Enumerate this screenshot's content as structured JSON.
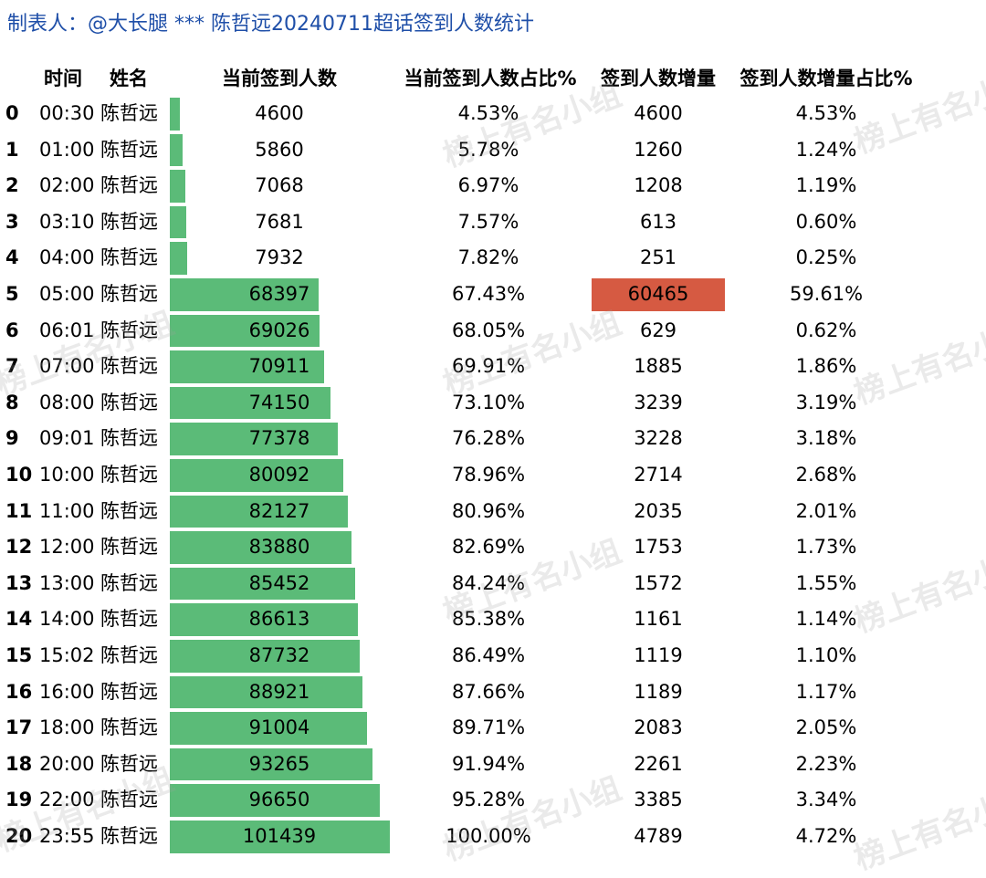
{
  "title": "制表人：@大长腿 *** 陈哲远20240711超话签到人数统计",
  "headers": {
    "time": "时间",
    "name": "姓名",
    "count": "当前签到人数",
    "count_pct": "当前签到人数占比%",
    "increase": "签到人数增量",
    "increase_pct": "签到人数增量占比%"
  },
  "max_count": 101439,
  "highlight_color": "#d65a42",
  "bar_color": "#5bbb78",
  "watermark_text": "榜上有名小组",
  "rows": [
    {
      "idx": "0",
      "time": "00:30",
      "name": "陈哲远",
      "count": "4600",
      "count_pct": "4.53%",
      "increase": "4600",
      "increase_pct": "4.53%"
    },
    {
      "idx": "1",
      "time": "01:00",
      "name": "陈哲远",
      "count": "5860",
      "count_pct": "5.78%",
      "increase": "1260",
      "increase_pct": "1.24%"
    },
    {
      "idx": "2",
      "time": "02:00",
      "name": "陈哲远",
      "count": "7068",
      "count_pct": "6.97%",
      "increase": "1208",
      "increase_pct": "1.19%"
    },
    {
      "idx": "3",
      "time": "03:10",
      "name": "陈哲远",
      "count": "7681",
      "count_pct": "7.57%",
      "increase": "613",
      "increase_pct": "0.60%"
    },
    {
      "idx": "4",
      "time": "04:00",
      "name": "陈哲远",
      "count": "7932",
      "count_pct": "7.82%",
      "increase": "251",
      "increase_pct": "0.25%"
    },
    {
      "idx": "5",
      "time": "05:00",
      "name": "陈哲远",
      "count": "68397",
      "count_pct": "67.43%",
      "increase": "60465",
      "increase_pct": "59.61%",
      "highlight": true
    },
    {
      "idx": "6",
      "time": "06:01",
      "name": "陈哲远",
      "count": "69026",
      "count_pct": "68.05%",
      "increase": "629",
      "increase_pct": "0.62%"
    },
    {
      "idx": "7",
      "time": "07:00",
      "name": "陈哲远",
      "count": "70911",
      "count_pct": "69.91%",
      "increase": "1885",
      "increase_pct": "1.86%"
    },
    {
      "idx": "8",
      "time": "08:00",
      "name": "陈哲远",
      "count": "74150",
      "count_pct": "73.10%",
      "increase": "3239",
      "increase_pct": "3.19%"
    },
    {
      "idx": "9",
      "time": "09:01",
      "name": "陈哲远",
      "count": "77378",
      "count_pct": "76.28%",
      "increase": "3228",
      "increase_pct": "3.18%"
    },
    {
      "idx": "10",
      "time": "10:00",
      "name": "陈哲远",
      "count": "80092",
      "count_pct": "78.96%",
      "increase": "2714",
      "increase_pct": "2.68%"
    },
    {
      "idx": "11",
      "time": "11:00",
      "name": "陈哲远",
      "count": "82127",
      "count_pct": "80.96%",
      "increase": "2035",
      "increase_pct": "2.01%"
    },
    {
      "idx": "12",
      "time": "12:00",
      "name": "陈哲远",
      "count": "83880",
      "count_pct": "82.69%",
      "increase": "1753",
      "increase_pct": "1.73%"
    },
    {
      "idx": "13",
      "time": "13:00",
      "name": "陈哲远",
      "count": "85452",
      "count_pct": "84.24%",
      "increase": "1572",
      "increase_pct": "1.55%"
    },
    {
      "idx": "14",
      "time": "14:00",
      "name": "陈哲远",
      "count": "86613",
      "count_pct": "85.38%",
      "increase": "1161",
      "increase_pct": "1.14%"
    },
    {
      "idx": "15",
      "time": "15:02",
      "name": "陈哲远",
      "count": "87732",
      "count_pct": "86.49%",
      "increase": "1119",
      "increase_pct": "1.10%"
    },
    {
      "idx": "16",
      "time": "16:00",
      "name": "陈哲远",
      "count": "88921",
      "count_pct": "87.66%",
      "increase": "1189",
      "increase_pct": "1.17%"
    },
    {
      "idx": "17",
      "time": "18:00",
      "name": "陈哲远",
      "count": "91004",
      "count_pct": "89.71%",
      "increase": "2083",
      "increase_pct": "2.05%"
    },
    {
      "idx": "18",
      "time": "20:00",
      "name": "陈哲远",
      "count": "93265",
      "count_pct": "91.94%",
      "increase": "2261",
      "increase_pct": "2.23%"
    },
    {
      "idx": "19",
      "time": "22:00",
      "name": "陈哲远",
      "count": "96650",
      "count_pct": "95.28%",
      "increase": "3385",
      "increase_pct": "3.34%"
    },
    {
      "idx": "20",
      "time": "23:55",
      "name": "陈哲远",
      "count": "101439",
      "count_pct": "100.00%",
      "increase": "4789",
      "increase_pct": "4.72%"
    }
  ]
}
